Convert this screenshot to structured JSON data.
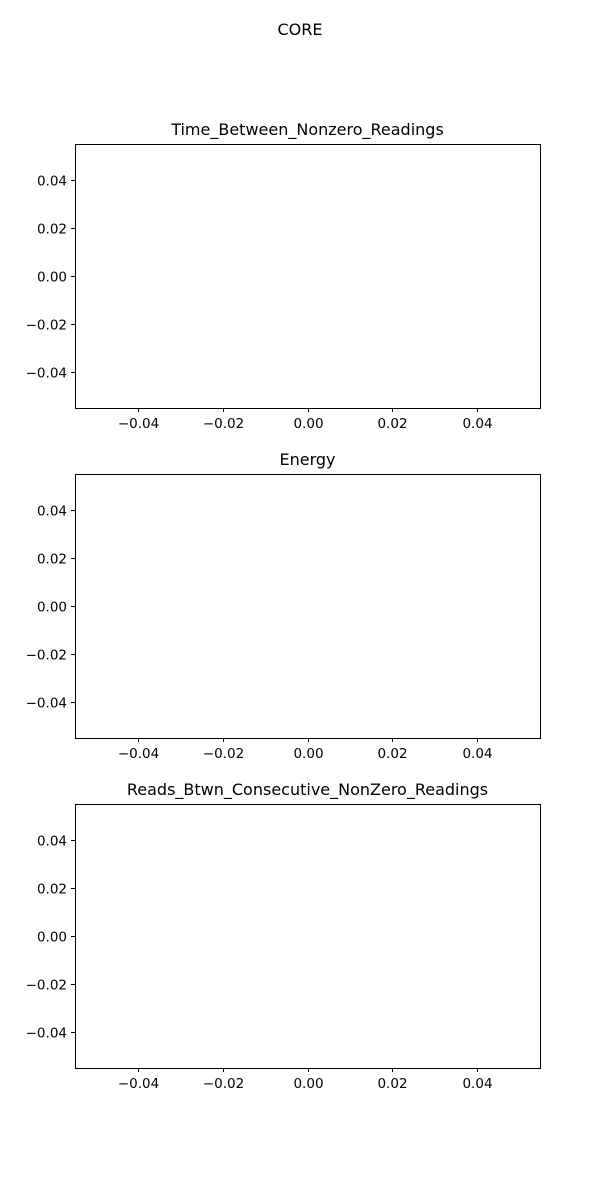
{
  "figure": {
    "suptitle": "CORE"
  },
  "chart_data": [
    {
      "type": "line",
      "title": "Time_Between_Nonzero_Readings",
      "xlabel": "",
      "ylabel": "",
      "xlim": [
        -0.055,
        0.055
      ],
      "ylim": [
        -0.055,
        0.055
      ],
      "xticks": [
        "−0.04",
        "−0.02",
        "0.00",
        "0.02",
        "0.04"
      ],
      "yticks": [
        "0.04",
        "0.02",
        "0.00",
        "−0.02",
        "−0.04"
      ],
      "series": [],
      "grid": false
    },
    {
      "type": "line",
      "title": "Energy",
      "xlabel": "",
      "ylabel": "",
      "xlim": [
        -0.055,
        0.055
      ],
      "ylim": [
        -0.055,
        0.055
      ],
      "xticks": [
        "−0.04",
        "−0.02",
        "0.00",
        "0.02",
        "0.04"
      ],
      "yticks": [
        "0.04",
        "0.02",
        "0.00",
        "−0.02",
        "−0.04"
      ],
      "series": [],
      "grid": false
    },
    {
      "type": "line",
      "title": "Reads_Btwn_Consecutive_NonZero_Readings",
      "xlabel": "",
      "ylabel": "",
      "xlim": [
        -0.055,
        0.055
      ],
      "ylim": [
        -0.055,
        0.055
      ],
      "xticks": [
        "−0.04",
        "−0.02",
        "0.00",
        "0.02",
        "0.04"
      ],
      "yticks": [
        "0.04",
        "0.02",
        "0.00",
        "−0.02",
        "−0.04"
      ],
      "series": [],
      "grid": false
    }
  ]
}
